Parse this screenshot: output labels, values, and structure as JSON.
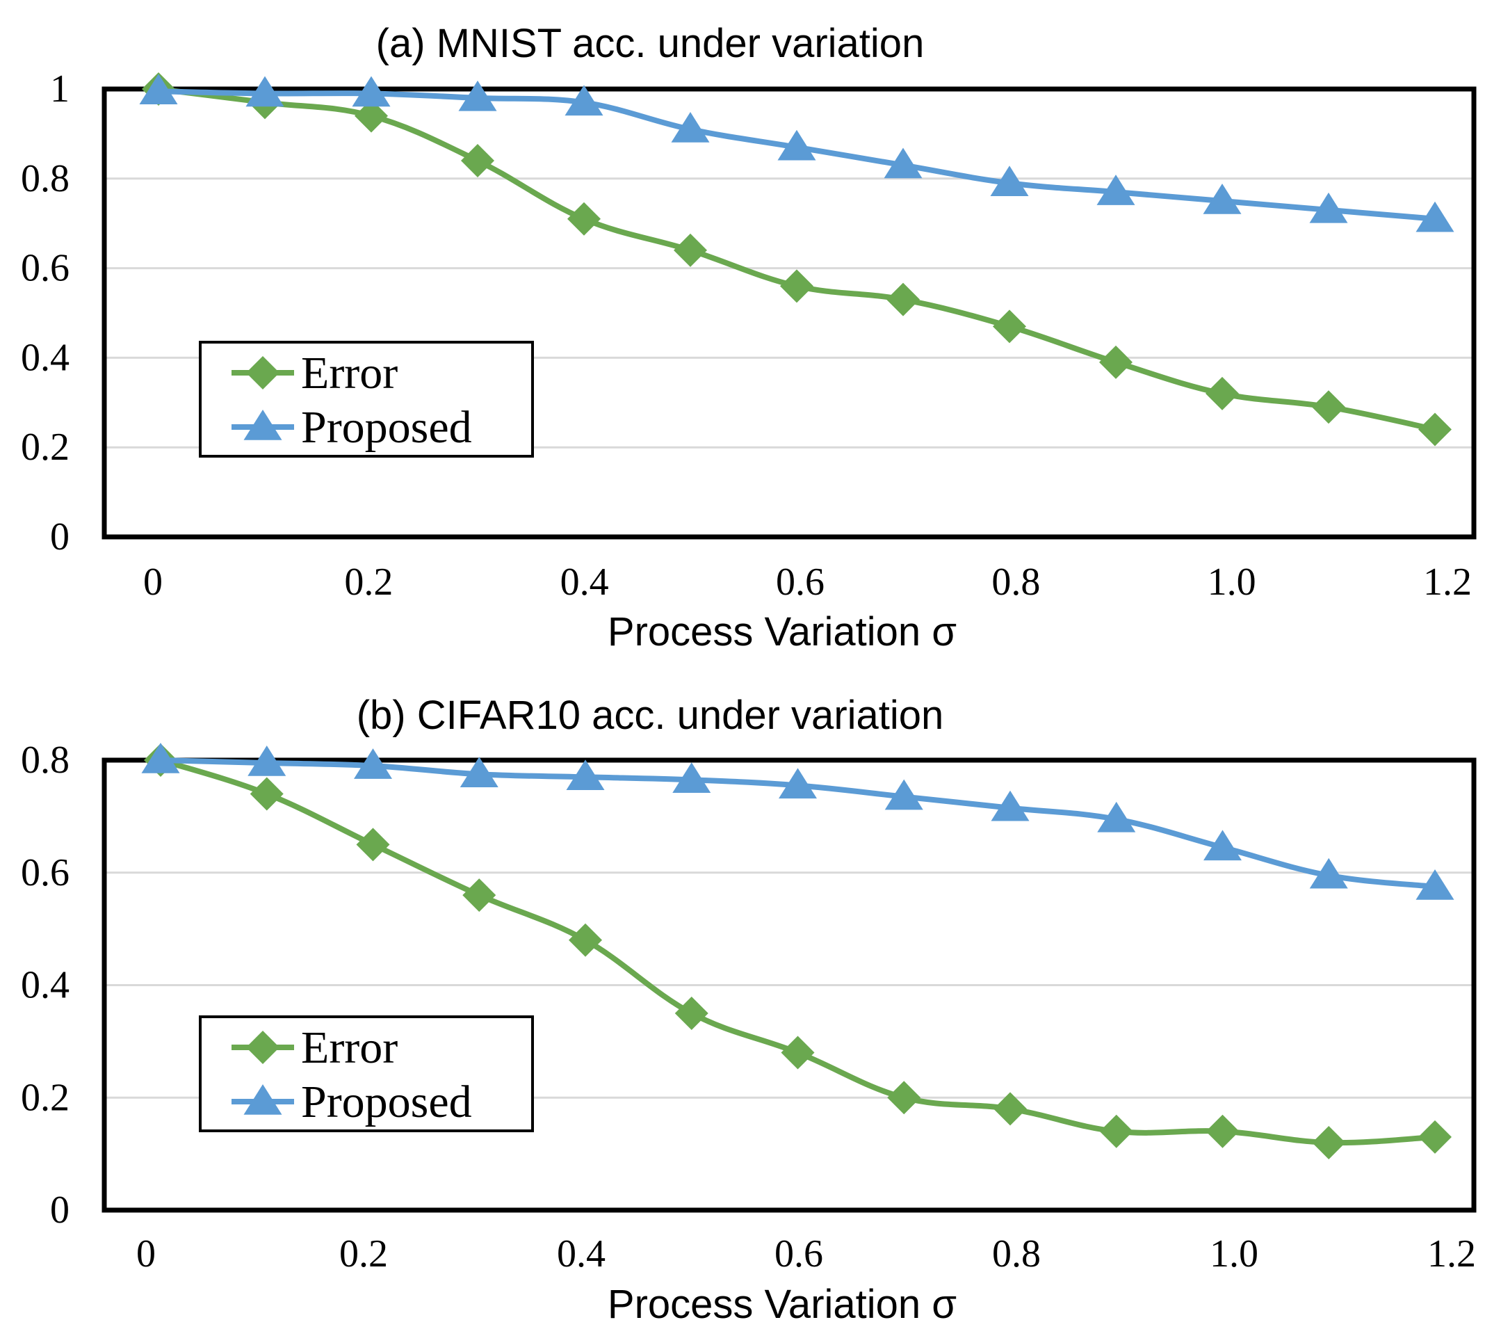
{
  "chart_data": [
    {
      "type": "line",
      "title": "(a) MNIST acc. under variation",
      "xlabel": "Process Variation σ",
      "ylabel": "",
      "ylim": [
        0,
        1
      ],
      "yticks": [
        "0",
        "0.2",
        "0.4",
        "0.6",
        "0.8",
        "1"
      ],
      "xticks": [
        "0",
        "0.2",
        "0.4",
        "0.6",
        "0.8",
        "1.0",
        "1.2"
      ],
      "x": [
        0,
        0.1,
        0.2,
        0.3,
        0.4,
        0.5,
        0.6,
        0.7,
        0.8,
        0.9,
        1.0,
        1.1,
        1.2
      ],
      "grid": true,
      "legend": "left-middle",
      "series": [
        {
          "name": "Error",
          "color": "#6aa84f",
          "marker": "diamond",
          "values": [
            1.0,
            0.97,
            0.94,
            0.84,
            0.71,
            0.64,
            0.56,
            0.53,
            0.47,
            0.39,
            0.32,
            0.29,
            0.24
          ]
        },
        {
          "name": "Proposed",
          "color": "#5b9bd5",
          "marker": "triangle",
          "values": [
            0.995,
            0.99,
            0.99,
            0.98,
            0.97,
            0.91,
            0.87,
            0.83,
            0.79,
            0.77,
            0.75,
            0.73,
            0.71
          ]
        }
      ]
    },
    {
      "type": "line",
      "title": "(b) CIFAR10 acc. under variation",
      "xlabel": "Process Variation σ",
      "ylabel": "",
      "ylim": [
        0,
        0.8
      ],
      "yticks": [
        "0",
        "0.2",
        "0.4",
        "0.6",
        "0.8"
      ],
      "xticks": [
        "0",
        "0.2",
        "0.4",
        "0.6",
        "0.8",
        "1.0",
        "1.2"
      ],
      "x": [
        0,
        0.1,
        0.2,
        0.3,
        0.4,
        0.5,
        0.6,
        0.7,
        0.8,
        0.9,
        1.0,
        1.1,
        1.2
      ],
      "grid": true,
      "legend": "left-middle",
      "series": [
        {
          "name": "Error",
          "color": "#6aa84f",
          "marker": "diamond",
          "values": [
            0.8,
            0.74,
            0.65,
            0.56,
            0.48,
            0.35,
            0.28,
            0.2,
            0.18,
            0.14,
            0.14,
            0.12,
            0.13
          ]
        },
        {
          "name": "Proposed",
          "color": "#5b9bd5",
          "marker": "triangle",
          "values": [
            0.8,
            0.795,
            0.79,
            0.775,
            0.77,
            0.765,
            0.755,
            0.735,
            0.715,
            0.695,
            0.645,
            0.595,
            0.575
          ]
        }
      ]
    }
  ]
}
